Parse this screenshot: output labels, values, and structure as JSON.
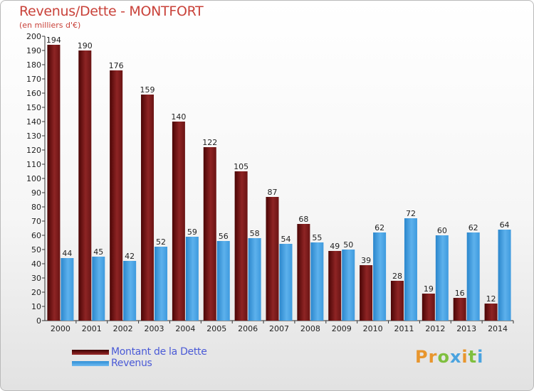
{
  "chart_data": {
    "type": "bar",
    "title": "Revenus/Dette - MONTFORT",
    "subtitle": "(en milliers d'€)",
    "categories": [
      "2000",
      "2001",
      "2002",
      "2003",
      "2004",
      "2005",
      "2006",
      "2007",
      "2008",
      "2009",
      "2010",
      "2011",
      "2012",
      "2013",
      "2014"
    ],
    "series": [
      {
        "name": "Montant de la Dette",
        "values": [
          194,
          190,
          176,
          159,
          140,
          122,
          105,
          87,
          68,
          49,
          39,
          28,
          19,
          16,
          12
        ]
      },
      {
        "name": "Revenus",
        "values": [
          44,
          45,
          42,
          52,
          59,
          56,
          58,
          54,
          55,
          50,
          62,
          72,
          60,
          62,
          64
        ]
      }
    ],
    "ylim": [
      0,
      200
    ],
    "yticks": [
      0,
      10,
      20,
      30,
      40,
      50,
      60,
      70,
      80,
      90,
      100,
      110,
      120,
      130,
      140,
      150,
      160,
      170,
      180,
      190,
      200
    ],
    "grid": false,
    "legend_position": "bottom-left",
    "colors": {
      "debt": "#7a1a1a",
      "revenue": "#4ea6e6"
    }
  },
  "logo": {
    "text": "Proxiti"
  }
}
